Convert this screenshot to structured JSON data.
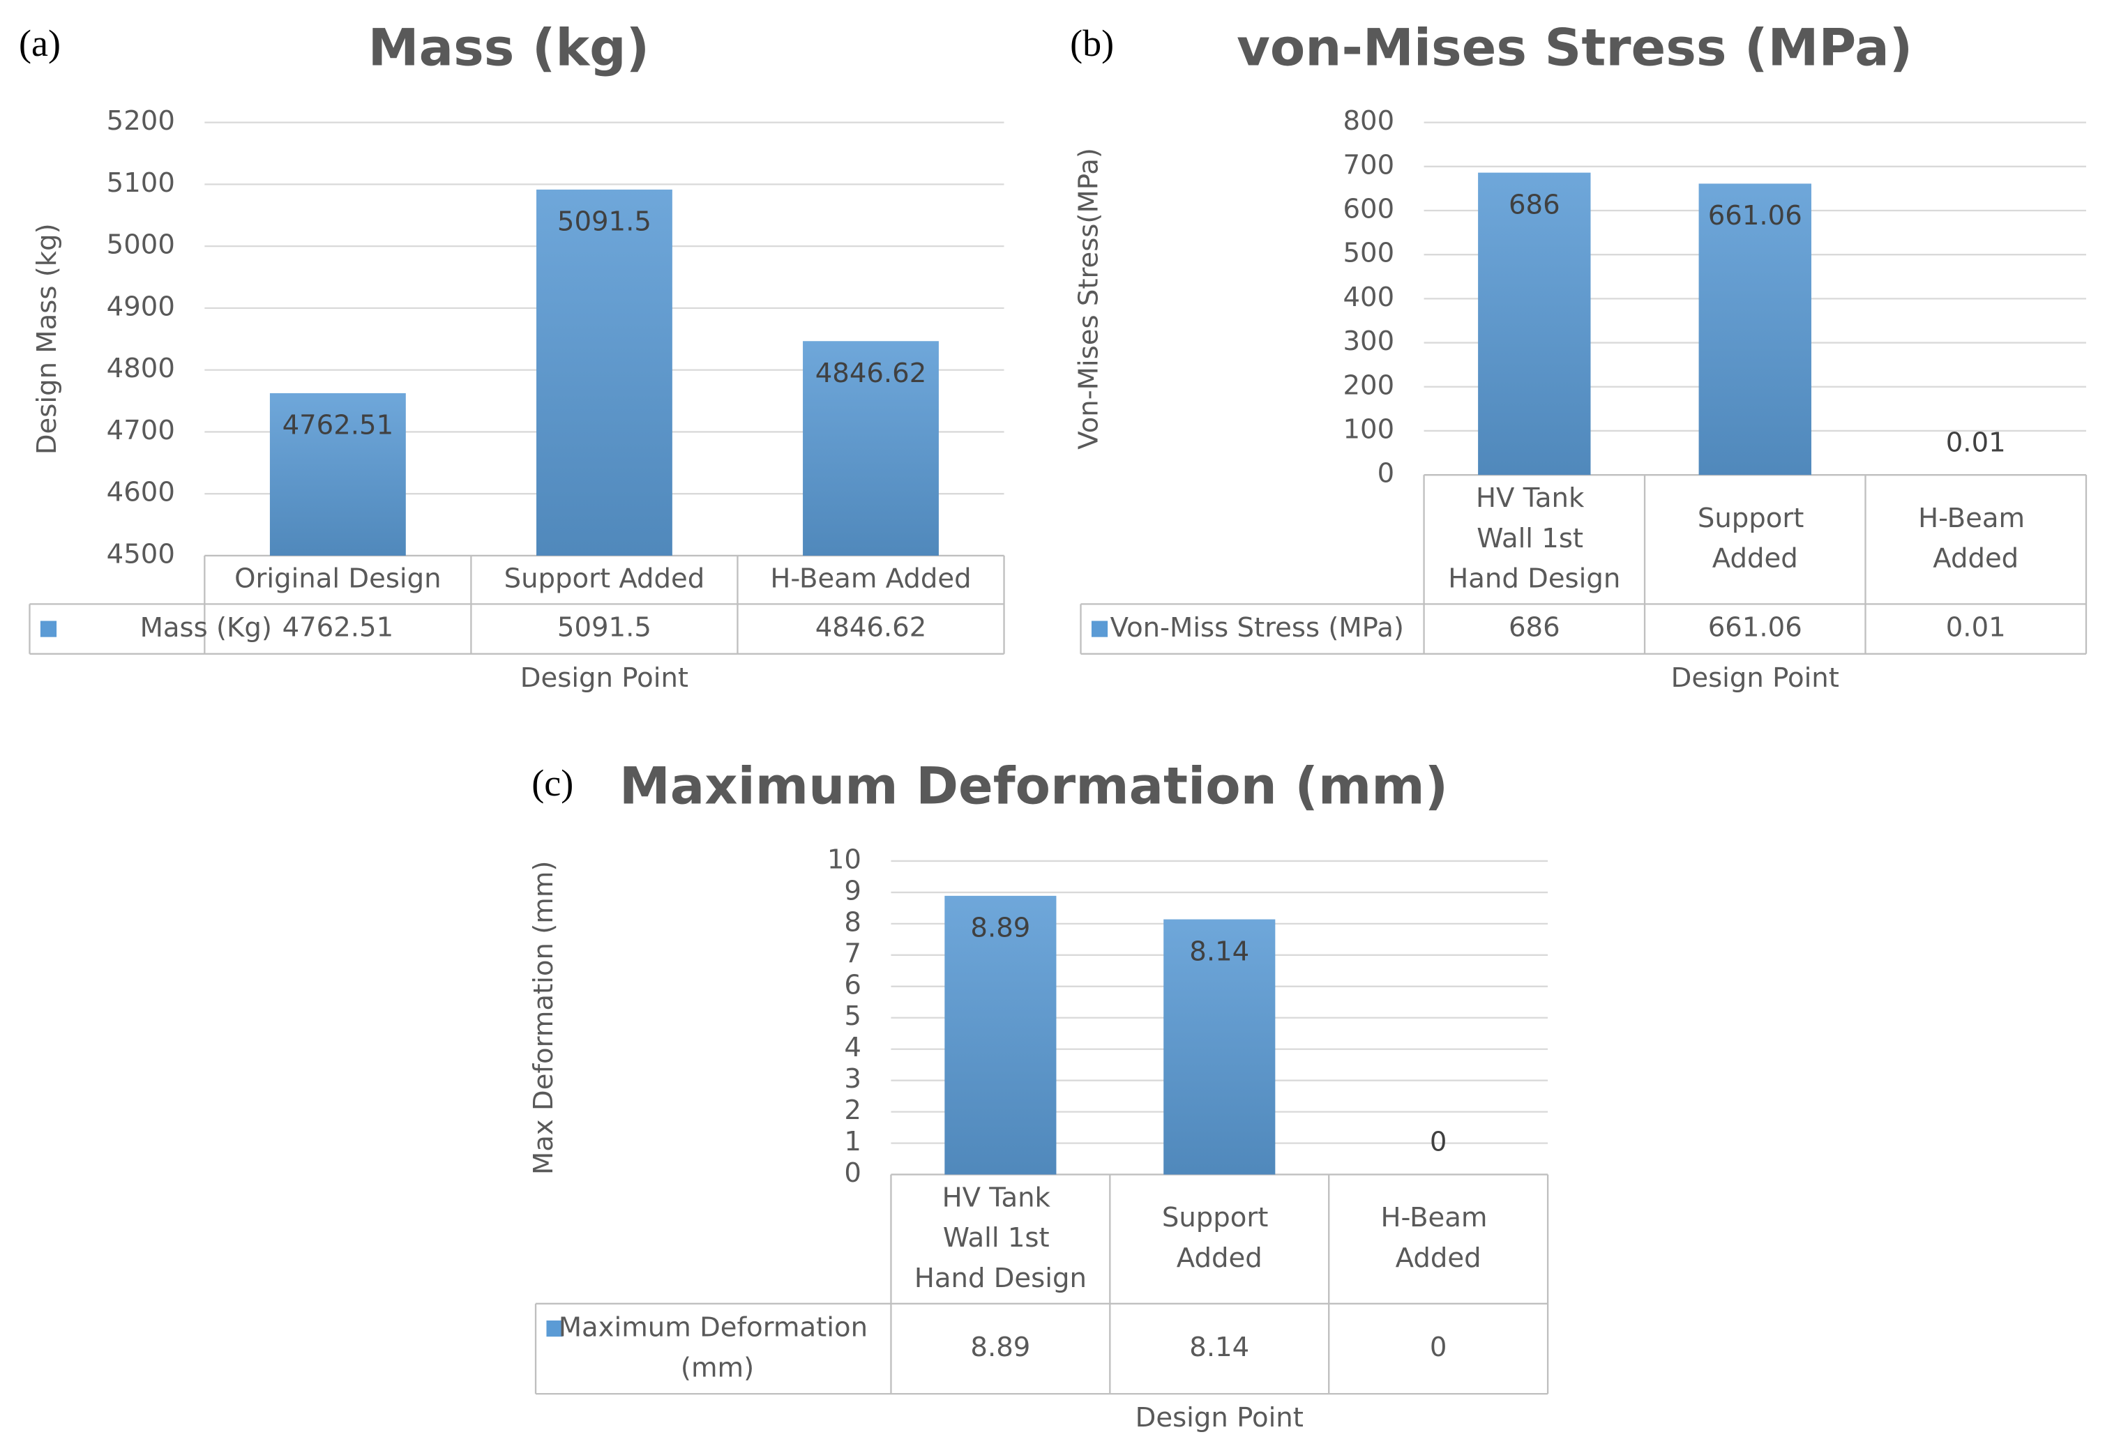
{
  "chart_data": [
    {
      "type": "bar",
      "panel": "(a)",
      "title": "Mass (kg)",
      "y_label": "Design Mass (kg)",
      "x_label": "Design Point",
      "categories": [
        "Original Design",
        "Support Added",
        "H-Beam Added"
      ],
      "series": [
        {
          "name": "Mass (Kg)",
          "color": "#5b9bd5",
          "values": [
            4762.51,
            5091.5,
            4846.62
          ]
        }
      ],
      "ylim": [
        4500,
        5200
      ],
      "yticks": [
        4500,
        4600,
        4700,
        4800,
        4900,
        5000,
        5100,
        5200
      ],
      "grid": true,
      "data_table": true
    },
    {
      "type": "bar",
      "panel": "(b)",
      "title": "von-Mises Stress (MPa)",
      "y_label": "Von-Mises Stress(MPa)",
      "x_label": "Design Point",
      "categories": [
        "HV Tank Wall 1st Hand Design",
        "Support Added",
        "H-Beam Added"
      ],
      "series": [
        {
          "name": "Von-Miss Stress (MPa)",
          "color": "#5b9bd5",
          "values": [
            686,
            661.06,
            0.01
          ]
        }
      ],
      "ylim": [
        0,
        800
      ],
      "yticks": [
        0,
        100,
        200,
        300,
        400,
        500,
        600,
        700,
        800
      ],
      "grid": true,
      "data_table": true
    },
    {
      "type": "bar",
      "panel": "(c)",
      "title": "Maximum Deformation (mm)",
      "y_label": "Max Deformation (mm)",
      "x_label": "Design Point",
      "categories": [
        "HV Tank Wall 1st Hand Design",
        "Support Added",
        "H-Beam Added"
      ],
      "series": [
        {
          "name": "Maximum Deformation (mm)",
          "color": "#5b9bd5",
          "values": [
            8.89,
            8.14,
            0
          ]
        }
      ],
      "ylim": [
        0,
        10
      ],
      "yticks": [
        0,
        1,
        2,
        3,
        4,
        5,
        6,
        7,
        8,
        9,
        10
      ],
      "grid": true,
      "data_table": true
    }
  ]
}
